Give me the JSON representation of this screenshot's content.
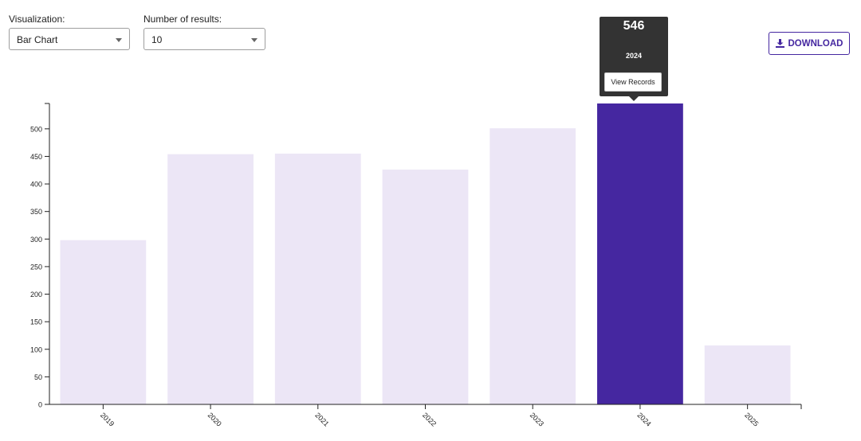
{
  "controls": {
    "visualization_label": "Visualization:",
    "visualization_value": "Bar Chart",
    "results_label": "Number of results:",
    "results_value": "10",
    "download_label": "DOWNLOAD"
  },
  "tooltip": {
    "value": "546",
    "category": "2024",
    "button_label": "View Records"
  },
  "colors": {
    "bar": "#ece6f6",
    "highlight": "#4527a0",
    "accent": "#4527a0"
  },
  "chart_data": {
    "type": "bar",
    "categories": [
      "2019",
      "2020",
      "2021",
      "2022",
      "2023",
      "2024",
      "2025"
    ],
    "values": [
      298,
      454,
      455,
      426,
      501,
      546,
      107
    ],
    "highlighted_category": "2024",
    "title": "",
    "xlabel": "",
    "ylabel": "",
    "ylim": [
      0,
      546
    ],
    "yticks": [
      0,
      50,
      100,
      150,
      200,
      250,
      300,
      350,
      400,
      450,
      500
    ],
    "grid": false
  }
}
